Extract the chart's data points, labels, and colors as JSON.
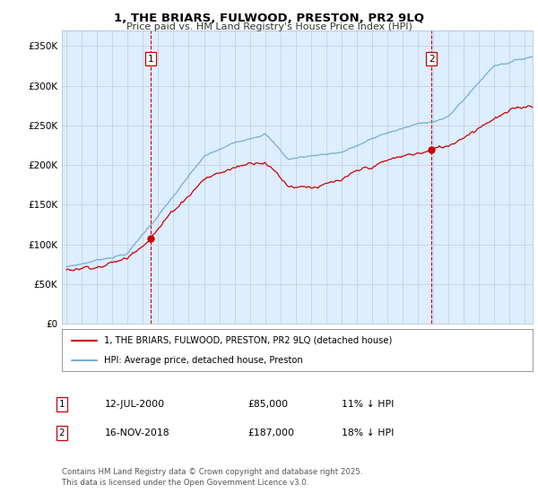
{
  "title": "1, THE BRIARS, FULWOOD, PRESTON, PR2 9LQ",
  "subtitle": "Price paid vs. HM Land Registry's House Price Index (HPI)",
  "ylabel_ticks": [
    "£0",
    "£50K",
    "£100K",
    "£150K",
    "£200K",
    "£250K",
    "£300K",
    "£350K"
  ],
  "ytick_vals": [
    0,
    50000,
    100000,
    150000,
    200000,
    250000,
    300000,
    350000
  ],
  "ylim": [
    0,
    370000
  ],
  "xlim_start": 1994.7,
  "xlim_end": 2025.5,
  "hpi_color": "#7aaad0",
  "price_color": "#cc0000",
  "chart_bg": "#ddeeff",
  "sale1_year": 2000.53,
  "sale1_price": 85000,
  "sale1_label": "1",
  "sale2_year": 2018.88,
  "sale2_price": 187000,
  "sale2_label": "2",
  "legend_line1": "1, THE BRIARS, FULWOOD, PRESTON, PR2 9LQ (detached house)",
  "legend_line2": "HPI: Average price, detached house, Preston",
  "table_row1": [
    "1",
    "12-JUL-2000",
    "£85,000",
    "11% ↓ HPI"
  ],
  "table_row2": [
    "2",
    "16-NOV-2018",
    "£187,000",
    "18% ↓ HPI"
  ],
  "footnote": "Contains HM Land Registry data © Crown copyright and database right 2025.\nThis data is licensed under the Open Government Licence v3.0.",
  "background_color": "#ffffff",
  "grid_color": "#c0ccdd"
}
